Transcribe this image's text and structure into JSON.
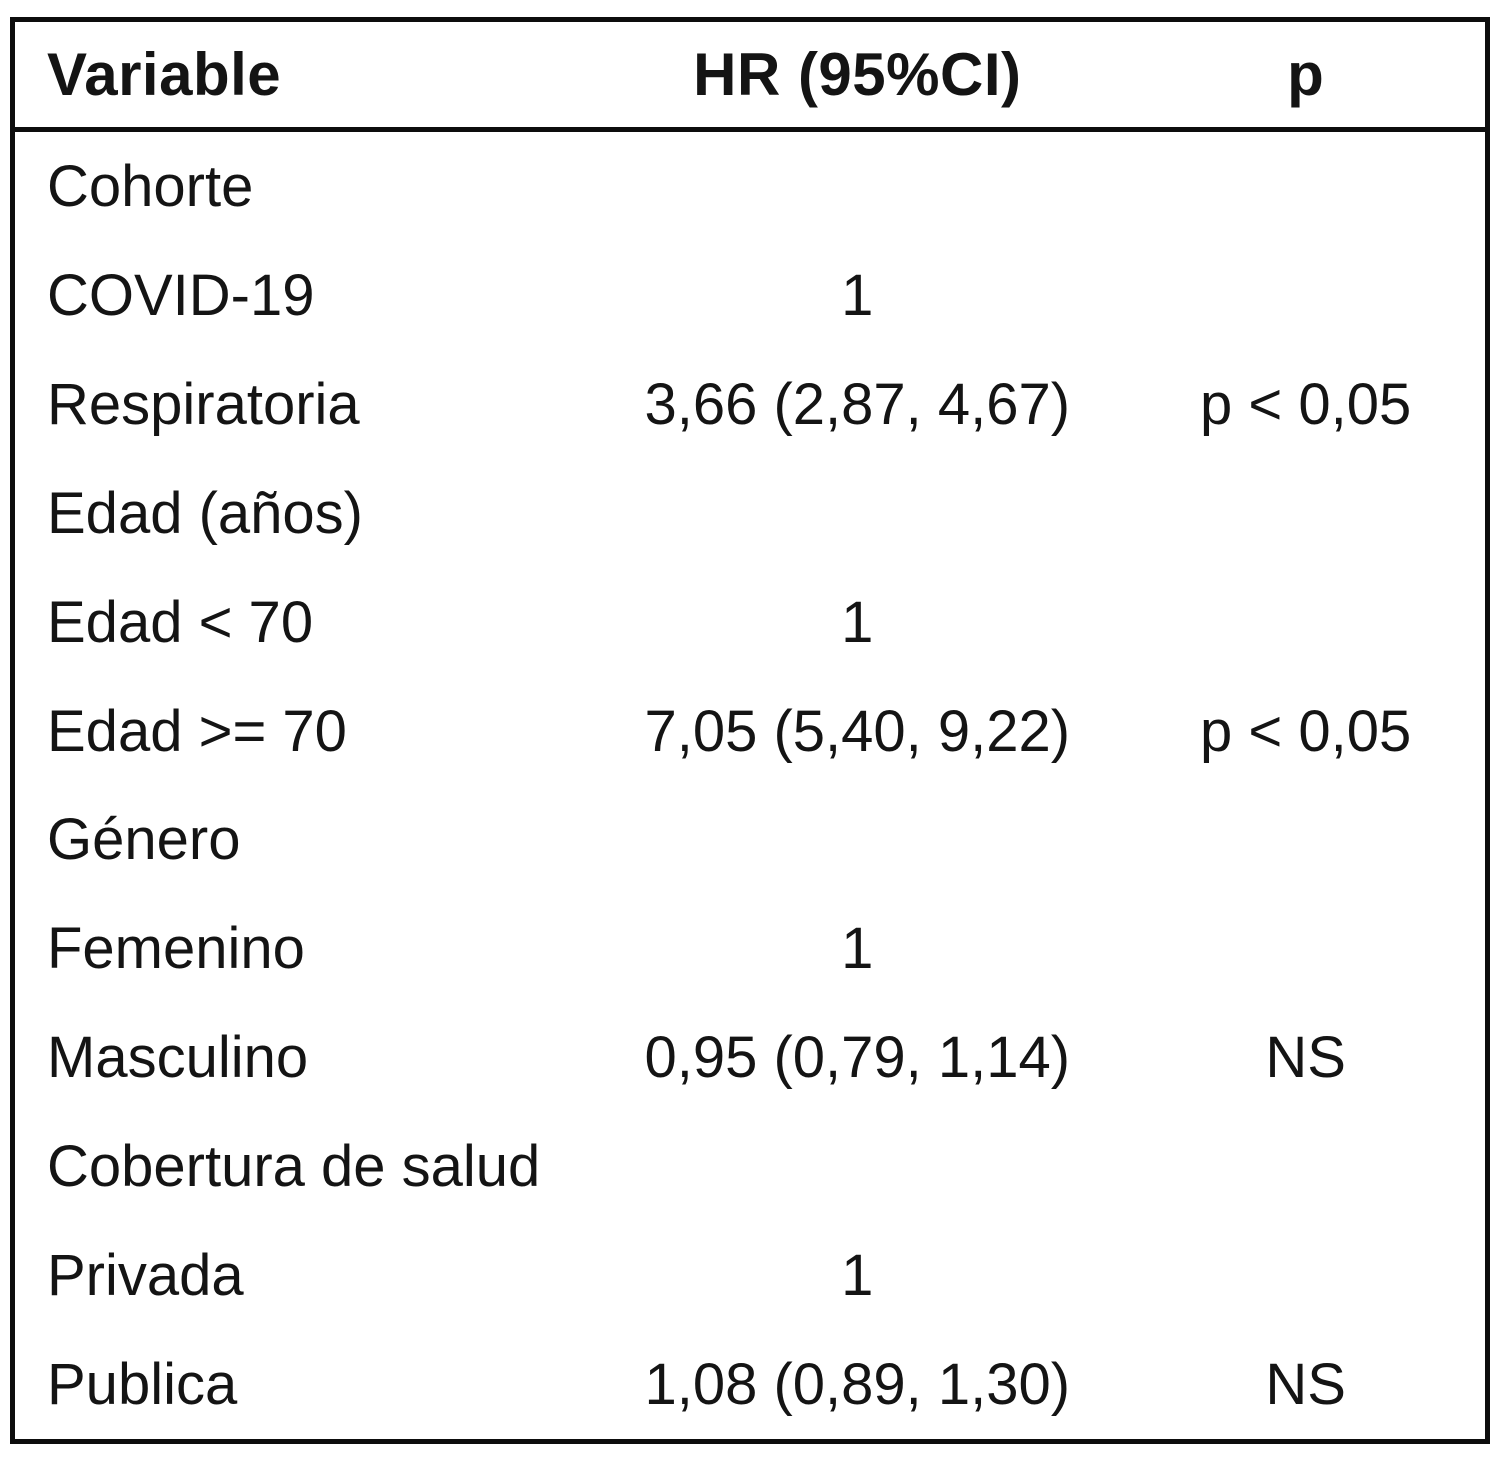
{
  "table": {
    "header": {
      "variable": "Variable",
      "hr": "HR (95%CI)",
      "p": "p"
    },
    "rows": [
      {
        "variable": "Cohorte",
        "hr": "",
        "p": "",
        "group": true
      },
      {
        "variable": "COVID-19",
        "hr": "1",
        "p": "",
        "group": false
      },
      {
        "variable": "Respiratoria",
        "hr": "3,66 (2,87, 4,67)",
        "p": "p < 0,05",
        "group": false
      },
      {
        "variable": "Edad (años)",
        "hr": "",
        "p": "",
        "group": true
      },
      {
        "variable": "Edad < 70",
        "hr": "1",
        "p": "",
        "group": false
      },
      {
        "variable": "Edad >= 70",
        "hr": "7,05 (5,40, 9,22)",
        "p": "p < 0,05",
        "group": false
      },
      {
        "variable": "Género",
        "hr": "",
        "p": "",
        "group": true
      },
      {
        "variable": "Femenino",
        "hr": "1",
        "p": "",
        "group": false
      },
      {
        "variable": "Masculino",
        "hr": "0,95 (0,79, 1,14)",
        "p": "NS",
        "group": false
      },
      {
        "variable": "Cobertura de salud",
        "hr": "",
        "p": "",
        "group": true
      },
      {
        "variable": "Privada",
        "hr": "1",
        "p": "",
        "group": false
      },
      {
        "variable": "Publica",
        "hr": "1,08 (0,89, 1,30)",
        "p": "NS",
        "group": false
      }
    ],
    "colors": {
      "border": "#0d0d0d",
      "text": "#141414",
      "background": "#ffffff"
    }
  }
}
